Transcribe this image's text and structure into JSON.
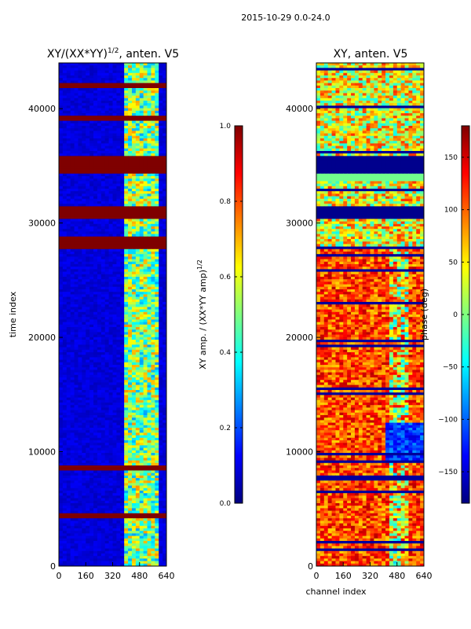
{
  "suptitle": "2015-10-29 0.0-24.0",
  "colors": {
    "jet": [
      "#00007f",
      "#0000ff",
      "#007fff",
      "#00ffff",
      "#7fff7f",
      "#ffff00",
      "#ff7f00",
      "#ff0000",
      "#7f0000"
    ]
  },
  "chart_data": [
    {
      "type": "heatmap",
      "title_main": "XY/(XX*YY)",
      "title_sup": "1/2",
      "title_rest": ", anten. V5",
      "xlabel": "",
      "ylabel": "time index",
      "xlim": [
        0,
        640
      ],
      "ylim": [
        0,
        44000
      ],
      "xticks": [
        "0",
        "160",
        "320",
        "480",
        "640"
      ],
      "yticks": [
        "0",
        "10000",
        "20000",
        "30000",
        "40000"
      ],
      "colorbar": {
        "label_main": "XY amp. / (XX*YY amp)",
        "label_sup": "1/2",
        "range": [
          0.0,
          1.0
        ],
        "ticks": [
          "0.0",
          "0.2",
          "0.4",
          "0.6",
          "0.8",
          "1.0"
        ]
      },
      "saturated_bands": [
        [
          34300,
          35900
        ],
        [
          30300,
          31400
        ],
        [
          27800,
          28800
        ],
        [
          39000,
          39400
        ],
        [
          41700,
          42200
        ],
        [
          4200,
          4600
        ],
        [
          8300,
          8700
        ]
      ],
      "summary": "Background amplitude near 0.1 across channels 0-400; elevated 0.3-0.7 between channels 400-600; rows with amplitude 1.0 at several time ranges."
    },
    {
      "type": "heatmap",
      "title_main": "XY, anten. V5",
      "xlabel": "channel index",
      "ylabel": "",
      "xlim": [
        0,
        640
      ],
      "ylim": [
        0,
        44000
      ],
      "xticks": [
        "0",
        "160",
        "320",
        "480",
        "640"
      ],
      "yticks": [
        "0",
        "10000",
        "20000",
        "30000",
        "40000"
      ],
      "colorbar": {
        "label": "phase (deg)",
        "range": [
          -180,
          180
        ],
        "ticks": [
          "−150",
          "−100",
          "−50",
          "0",
          "50",
          "100",
          "150"
        ]
      },
      "summary": "Phase mostly 60-150 deg between time 0-28000 with a region near -150 deg after channel 420; low-phase bands at 34300-35900 and 30300-31400."
    }
  ]
}
